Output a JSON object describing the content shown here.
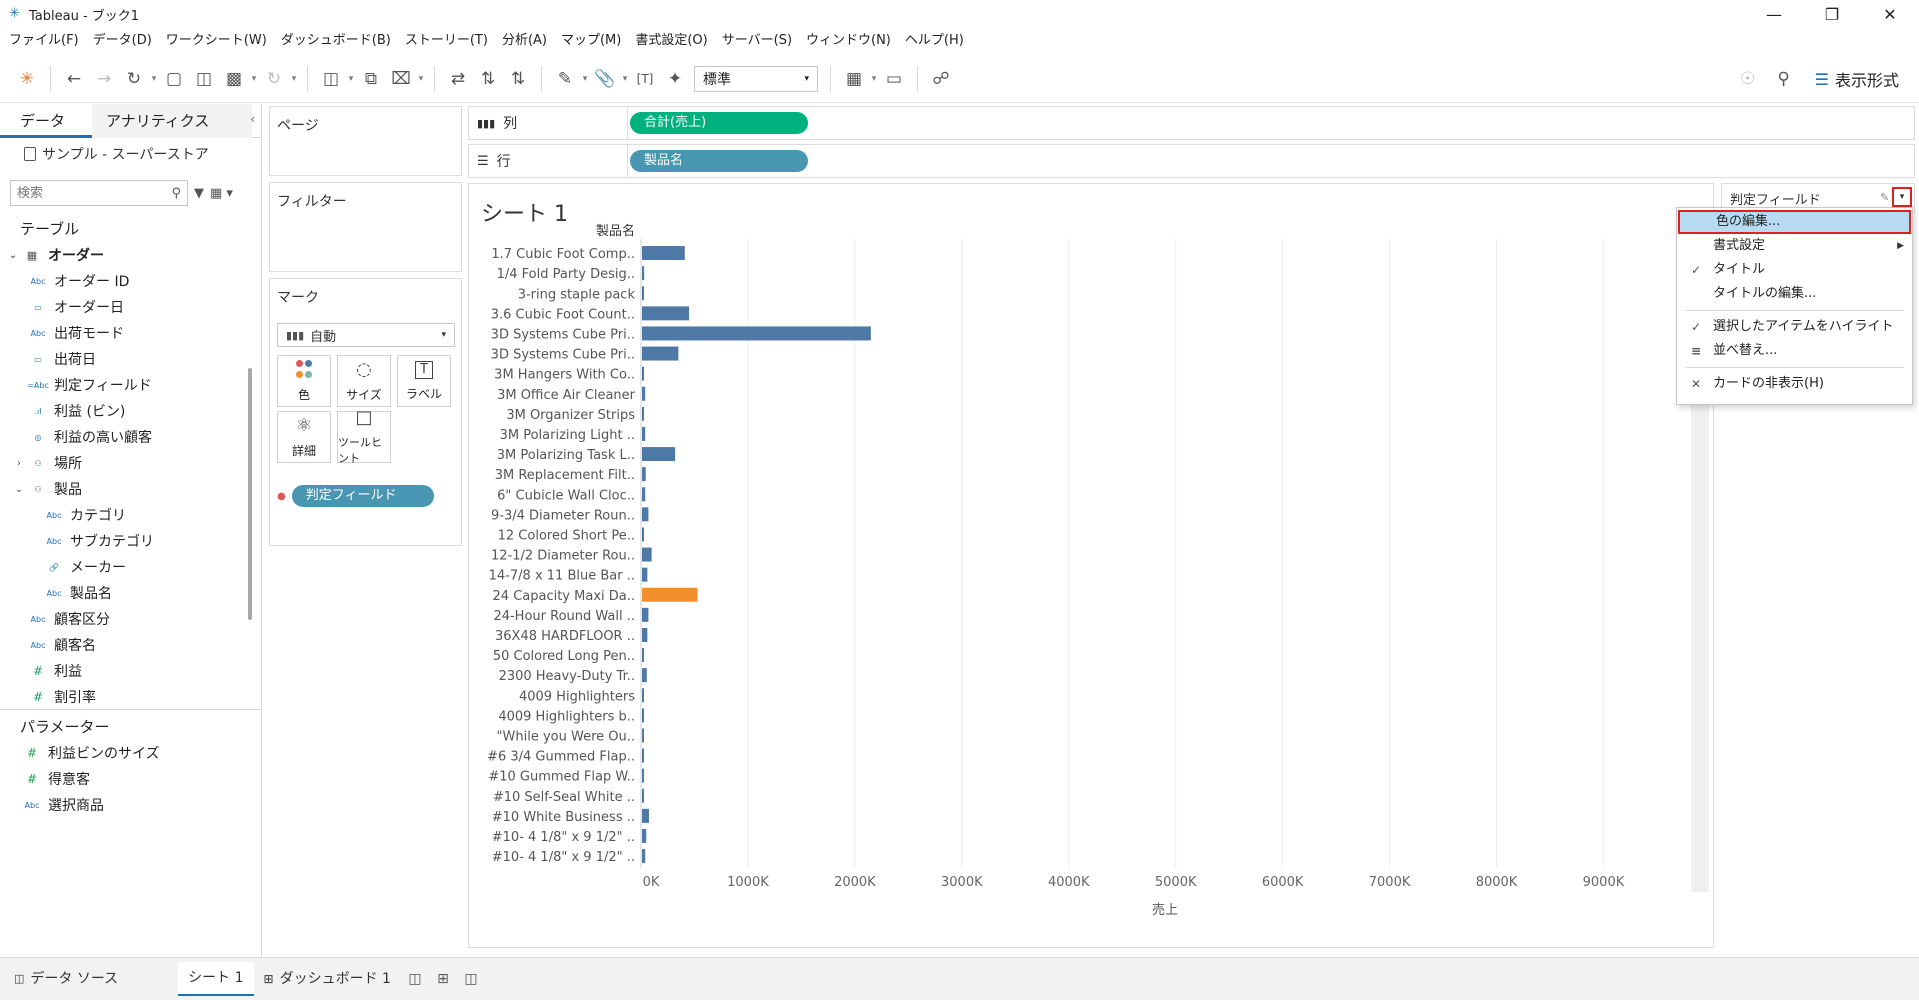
{
  "window": {
    "title": "Tableau - ブック1"
  },
  "menu": [
    "ファイル(F)",
    "データ(D)",
    "ワークシート(W)",
    "ダッシュボード(B)",
    "ストーリー(T)",
    "分析(A)",
    "マップ(M)",
    "書式設定(O)",
    "サーバー(S)",
    "ウィンドウ(N)",
    "ヘルプ(H)"
  ],
  "toolbar": {
    "fit_value": "標準",
    "show_me": "表示形式"
  },
  "datapane": {
    "tabs": [
      "データ",
      "アナリティクス"
    ],
    "datasource": "サンプル - スーパーストア",
    "search_placeholder": "検索",
    "tables_header": "テーブル",
    "table_name": "オーダー",
    "fields": [
      {
        "type": "Abc",
        "name": "オーダー ID",
        "indent": 1
      },
      {
        "type": "date",
        "name": "オーダー日",
        "indent": 1
      },
      {
        "type": "Abc",
        "name": "出荷モード",
        "indent": 1
      },
      {
        "type": "date",
        "name": "出荷日",
        "indent": 1
      },
      {
        "type": "=Abc",
        "name": "判定フィールド",
        "indent": 1
      },
      {
        "type": "bin",
        "name": "利益 (ビン)",
        "indent": 1
      },
      {
        "type": "set",
        "name": "利益の高い顧客",
        "indent": 1
      },
      {
        "type": "hier",
        "name": "場所",
        "indent": 1,
        "arrow": "›"
      },
      {
        "type": "hier",
        "name": "製品",
        "indent": 1,
        "arrow": "⌄"
      },
      {
        "type": "Abc",
        "name": "カテゴリ",
        "indent": 2
      },
      {
        "type": "Abc",
        "name": "サブカテゴリ",
        "indent": 2
      },
      {
        "type": "clip",
        "name": "メーカー",
        "indent": 2
      },
      {
        "type": "Abc",
        "name": "製品名",
        "indent": 2
      },
      {
        "type": "Abc",
        "name": "顧客区分",
        "indent": 1
      },
      {
        "type": "Abc",
        "name": "顧客名",
        "indent": 1
      },
      {
        "type": "#",
        "name": "利益",
        "indent": 1
      },
      {
        "type": "#",
        "name": "割引率",
        "indent": 1
      }
    ],
    "params_header": "パラメーター",
    "params": [
      {
        "type": "#",
        "name": "利益ビンのサイズ"
      },
      {
        "type": "#",
        "name": "得意客"
      },
      {
        "type": "Abc",
        "name": "選択商品"
      }
    ]
  },
  "shelves": {
    "pages": "ページ",
    "filters": "フィルター",
    "marks": "マーク",
    "mark_type": "自動",
    "mark_cards": [
      "色",
      "サイズ",
      "ラベル",
      "詳細",
      "ツールヒント"
    ],
    "mark_pill": "判定フィールド",
    "columns_label": "列",
    "columns_pill": "合計(売上)",
    "rows_label": "行",
    "rows_pill": "製品名"
  },
  "viz": {
    "sheet_title": "シート 1"
  },
  "colors": {
    "bar_default": "#4e79a7",
    "bar_highlight": "#f28e2b",
    "pill_green": "#00b180",
    "pill_blue": "#4996b2",
    "annotation_red": "#e02020"
  },
  "chart_data": {
    "type": "bar",
    "orientation": "horizontal",
    "ylabel": "製品名",
    "xlabel": "売上",
    "xlim": [
      0,
      9800000
    ],
    "x_ticks": [
      "0K",
      "1000K",
      "2000K",
      "3000K",
      "4000K",
      "5000K",
      "6000K",
      "7000K",
      "8000K",
      "9000K"
    ],
    "x_tick_values": [
      0,
      1000000,
      2000000,
      3000000,
      4000000,
      5000000,
      6000000,
      7000000,
      8000000,
      9000000
    ],
    "grid": "vertical",
    "categories": [
      "1.7 Cubic Foot Comp..",
      "1/4 Fold Party Desig..",
      "3-ring staple pack",
      "3.6 Cubic Foot Count..",
      "3D Systems Cube Pri..",
      "3D Systems Cube Pri..",
      "3M Hangers With Co..",
      "3M Office Air Cleaner",
      "3M Organizer Strips",
      "3M Polarizing Light ..",
      "3M Polarizing Task L..",
      "3M Replacement Filt..",
      "6\" Cubicle Wall Cloc..",
      "9-3/4 Diameter Roun..",
      "12 Colored Short Pe..",
      "12-1/2 Diameter Rou..",
      "14-7/8 x 11 Blue Bar ..",
      "24 Capacity Maxi Da..",
      "24-Hour Round Wall ..",
      "36X48 HARDFLOOR ..",
      "50 Colored Long Pen..",
      "2300 Heavy-Duty Tr..",
      "4009 Highlighters",
      "4009 Highlighters b..",
      "\"While you Were Ou..",
      "#6 3/4 Gummed Flap..",
      "#10 Gummed Flap W..",
      "#10 Self-Seal White ..",
      "#10 White Business ..",
      "#10- 4 1/8\" x 9 1/2\" ..",
      "#10- 4 1/8\" x 9 1/2\" .."
    ],
    "values": [
      400000,
      20000,
      5000,
      440000,
      2140000,
      340000,
      15000,
      30000,
      8000,
      30000,
      310000,
      35000,
      30000,
      60000,
      15000,
      90000,
      50000,
      520000,
      60000,
      50000,
      10000,
      45000,
      8000,
      15000,
      5000,
      8000,
      10000,
      10000,
      65000,
      40000,
      30000
    ],
    "highlighted_index": 17
  },
  "legend": {
    "title": "判定フィールド"
  },
  "context_menu": {
    "items": [
      {
        "label": "色の編集...",
        "highlighted": true
      },
      {
        "label": "書式設定",
        "submenu": true
      },
      {
        "label": "タイトル",
        "checked": true
      },
      {
        "label": "タイトルの編集..."
      },
      {
        "separator": true
      },
      {
        "label": "選択したアイテムをハイライト",
        "checked": true
      },
      {
        "label": "並べ替え...",
        "icon": "sort-icon"
      },
      {
        "separator": true
      },
      {
        "label": "カードの非表示(H)",
        "icon": "close-icon"
      }
    ]
  },
  "bottom_tabs": {
    "datasource": "データ ソース",
    "sheet": "シート 1",
    "dashboard": "ダッシュボード 1"
  }
}
